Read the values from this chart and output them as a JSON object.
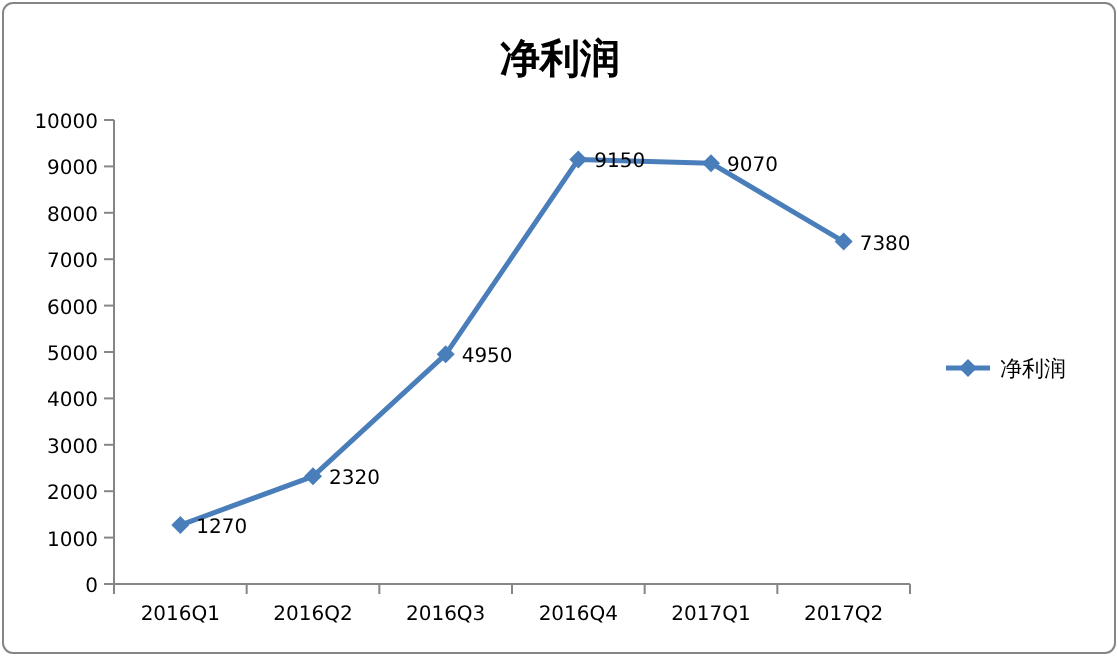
{
  "chart_data": {
    "type": "line",
    "title": "净利润",
    "categories": [
      "2016Q1",
      "2016Q2",
      "2016Q3",
      "2016Q4",
      "2017Q1",
      "2017Q2"
    ],
    "series": [
      {
        "name": "净利润",
        "color": "#4a7ebb",
        "values": [
          1270,
          2320,
          4950,
          9150,
          9070,
          7380
        ]
      }
    ],
    "ylim": [
      0,
      10000
    ],
    "yticks": [
      0,
      1000,
      2000,
      3000,
      4000,
      5000,
      6000,
      7000,
      8000,
      9000,
      10000
    ],
    "data_labels": true,
    "legend": "right",
    "marker": "diamond"
  }
}
